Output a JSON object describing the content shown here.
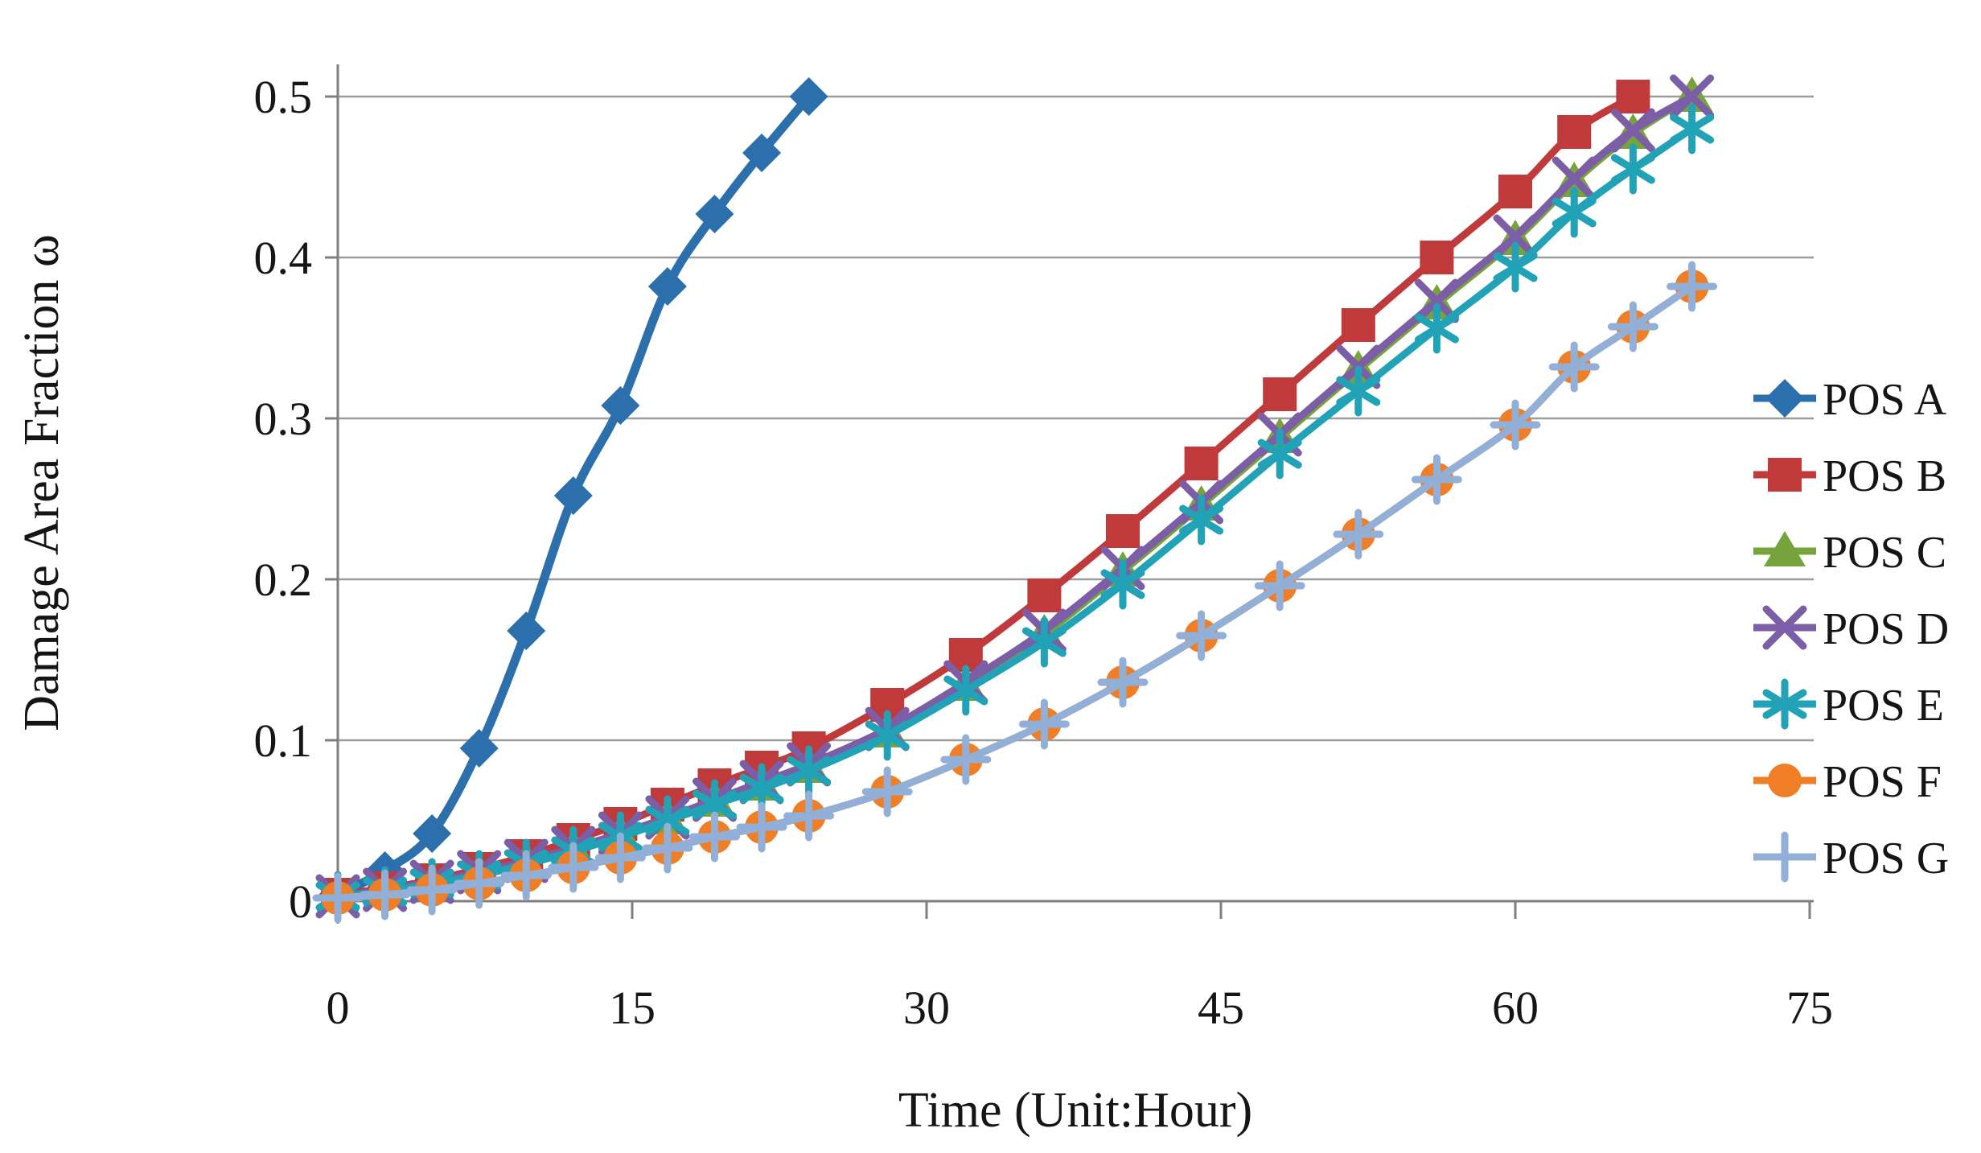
{
  "figure": {
    "title": "",
    "x_axis_title": "Time (Unit:Hour)",
    "y_axis_title": "Damage Area Fraction ω"
  },
  "chart_data": {
    "type": "line",
    "title": "",
    "xlabel": "Time (Unit:Hour)",
    "ylabel": "Damage Area Fraction ω",
    "xlim": [
      0,
      75.3
    ],
    "ylim": [
      0,
      0.52
    ],
    "xticks": [
      0,
      15,
      30,
      45,
      60,
      75
    ],
    "xtick_labels": [
      "0",
      "15",
      "30",
      "45",
      "60",
      "75"
    ],
    "yticks": [
      0,
      0.1,
      0.2,
      0.3,
      0.4,
      0.5
    ],
    "ytick_labels": [
      "0",
      "0.1",
      "0.2",
      "0.3",
      "0.4",
      "0.5"
    ],
    "grid": "horizontal",
    "legend_position": "right",
    "grid_color": "#9C9C9C",
    "axis_color": "#7F7F7F",
    "text_color": "#151515",
    "series": [
      {
        "name": "POS A",
        "color": "#2C6FAD",
        "marker": "diamond",
        "x": [
          0,
          2.4,
          4.8,
          7.2,
          9.6,
          12,
          14.4,
          16.8,
          19.2,
          21.6,
          24
        ],
        "y": [
          0.004,
          0.019,
          0.042,
          0.095,
          0.168,
          0.252,
          0.308,
          0.382,
          0.427,
          0.465,
          0.5
        ]
      },
      {
        "name": "POS B",
        "color": "#C0393B",
        "marker": "square",
        "x": [
          0,
          2.4,
          4.8,
          7.2,
          9.6,
          12,
          14.4,
          16.8,
          19.2,
          21.6,
          24,
          28,
          32,
          36,
          40,
          44,
          48,
          52,
          56,
          60,
          63,
          66
        ],
        "y": [
          0.004,
          0.008,
          0.013,
          0.02,
          0.028,
          0.038,
          0.048,
          0.06,
          0.072,
          0.083,
          0.095,
          0.122,
          0.153,
          0.19,
          0.23,
          0.272,
          0.315,
          0.358,
          0.4,
          0.441,
          0.478,
          0.5
        ]
      },
      {
        "name": "POS C",
        "color": "#76A33C",
        "marker": "triangle",
        "x": [
          0,
          2.4,
          4.8,
          7.2,
          9.6,
          12,
          14.4,
          16.8,
          19.2,
          21.6,
          24,
          28,
          32,
          36,
          40,
          44,
          48,
          52,
          56,
          60,
          63,
          66,
          69
        ],
        "y": [
          0.003,
          0.006,
          0.011,
          0.017,
          0.024,
          0.032,
          0.041,
          0.051,
          0.062,
          0.072,
          0.083,
          0.105,
          0.134,
          0.166,
          0.205,
          0.246,
          0.288,
          0.33,
          0.371,
          0.411,
          0.447,
          0.477,
          0.5
        ]
      },
      {
        "name": "POS D",
        "color": "#7C5EA6",
        "marker": "x",
        "x": [
          0,
          2.4,
          4.8,
          7.2,
          9.6,
          12,
          14.4,
          16.8,
          19.2,
          21.6,
          24,
          28,
          32,
          36,
          40,
          44,
          48,
          52,
          56,
          60,
          63,
          66,
          69
        ],
        "y": [
          0.003,
          0.007,
          0.012,
          0.018,
          0.025,
          0.033,
          0.042,
          0.052,
          0.063,
          0.074,
          0.085,
          0.107,
          0.136,
          0.168,
          0.207,
          0.248,
          0.29,
          0.332,
          0.373,
          0.413,
          0.449,
          0.479,
          0.5
        ]
      },
      {
        "name": "POS E",
        "color": "#21A2B6",
        "marker": "asterisk",
        "x": [
          0,
          2.4,
          4.8,
          7.2,
          9.6,
          12,
          14.4,
          16.8,
          19.2,
          21.6,
          24,
          28,
          32,
          36,
          40,
          44,
          48,
          52,
          56,
          60,
          63,
          66,
          69
        ],
        "y": [
          0.003,
          0.006,
          0.011,
          0.016,
          0.023,
          0.031,
          0.04,
          0.05,
          0.06,
          0.07,
          0.081,
          0.103,
          0.131,
          0.161,
          0.197,
          0.237,
          0.278,
          0.317,
          0.356,
          0.394,
          0.428,
          0.455,
          0.48
        ]
      },
      {
        "name": "POS F",
        "color": "#F07E27",
        "marker": "circle",
        "x": [
          0,
          2.4,
          4.8,
          7.2,
          9.6,
          12,
          14.4,
          16.8,
          19.2,
          21.6,
          24,
          28,
          32,
          36,
          40,
          44,
          48,
          52,
          56,
          60,
          63,
          66,
          69
        ],
        "y": [
          0.002,
          0.004,
          0.007,
          0.011,
          0.016,
          0.021,
          0.027,
          0.033,
          0.04,
          0.046,
          0.053,
          0.068,
          0.088,
          0.11,
          0.136,
          0.165,
          0.196,
          0.228,
          0.262,
          0.296,
          0.332,
          0.357,
          0.382
        ]
      },
      {
        "name": "POS G",
        "color": "#92AFD7",
        "marker": "plus",
        "x": [
          0,
          2.4,
          4.8,
          7.2,
          9.6,
          12,
          14.4,
          16.8,
          19.2,
          21.6,
          24,
          28,
          32,
          36,
          40,
          44,
          48,
          52,
          56,
          60,
          63,
          66,
          69
        ],
        "y": [
          0.002,
          0.004,
          0.007,
          0.011,
          0.016,
          0.021,
          0.027,
          0.033,
          0.04,
          0.046,
          0.053,
          0.068,
          0.088,
          0.11,
          0.136,
          0.165,
          0.196,
          0.228,
          0.262,
          0.296,
          0.332,
          0.357,
          0.382
        ]
      }
    ]
  }
}
